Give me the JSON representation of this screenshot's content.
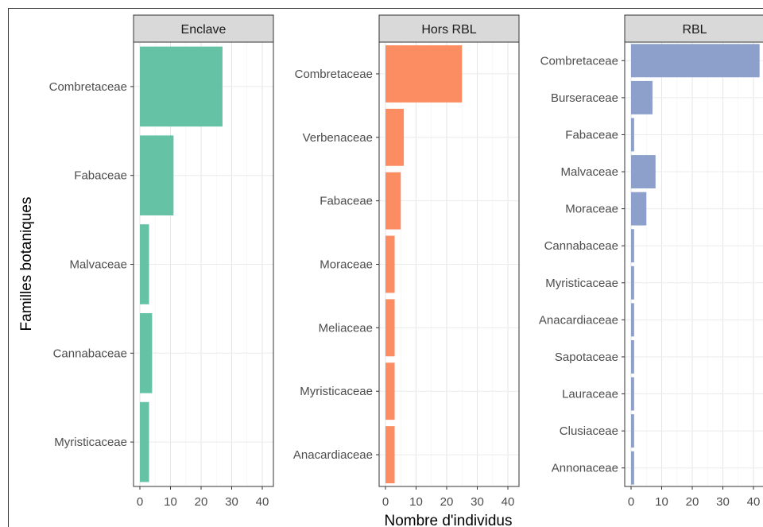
{
  "chart_data": {
    "type": "bar",
    "orientation": "horizontal",
    "xlabel": "Nombre d'individus",
    "ylabel": "Familles botaniques",
    "xlim": [
      0,
      45
    ],
    "x_ticks": [
      0,
      10,
      20,
      30,
      40
    ],
    "grid": true,
    "facets": [
      {
        "name": "Enclave",
        "color": "#66c2a5",
        "categories": [
          "Combretaceae",
          "Fabaceae",
          "Malvaceae",
          "Cannabaceae",
          "Myristicaceae"
        ],
        "values": [
          27,
          11,
          3,
          4,
          3
        ]
      },
      {
        "name": "Hors RBL",
        "color": "#fc8d62",
        "categories": [
          "Combretaceae",
          "Verbenaceae",
          "Fabaceae",
          "Moraceae",
          "Meliaceae",
          "Myristicaceae",
          "Anacardiaceae"
        ],
        "values": [
          25,
          6,
          5,
          3,
          3,
          3,
          3
        ]
      },
      {
        "name": "RBL",
        "color": "#8da0cb",
        "categories": [
          "Combretaceae",
          "Burseraceae",
          "Fabaceae",
          "Malvaceae",
          "Moraceae",
          "Cannabaceae",
          "Myristicaceae",
          "Anacardiaceae",
          "Sapotaceae",
          "Lauraceae",
          "Clusiaceae",
          "Annonaceae"
        ],
        "values": [
          42,
          7,
          1,
          8,
          5,
          1,
          1,
          1,
          1,
          1,
          1,
          1
        ]
      }
    ]
  }
}
